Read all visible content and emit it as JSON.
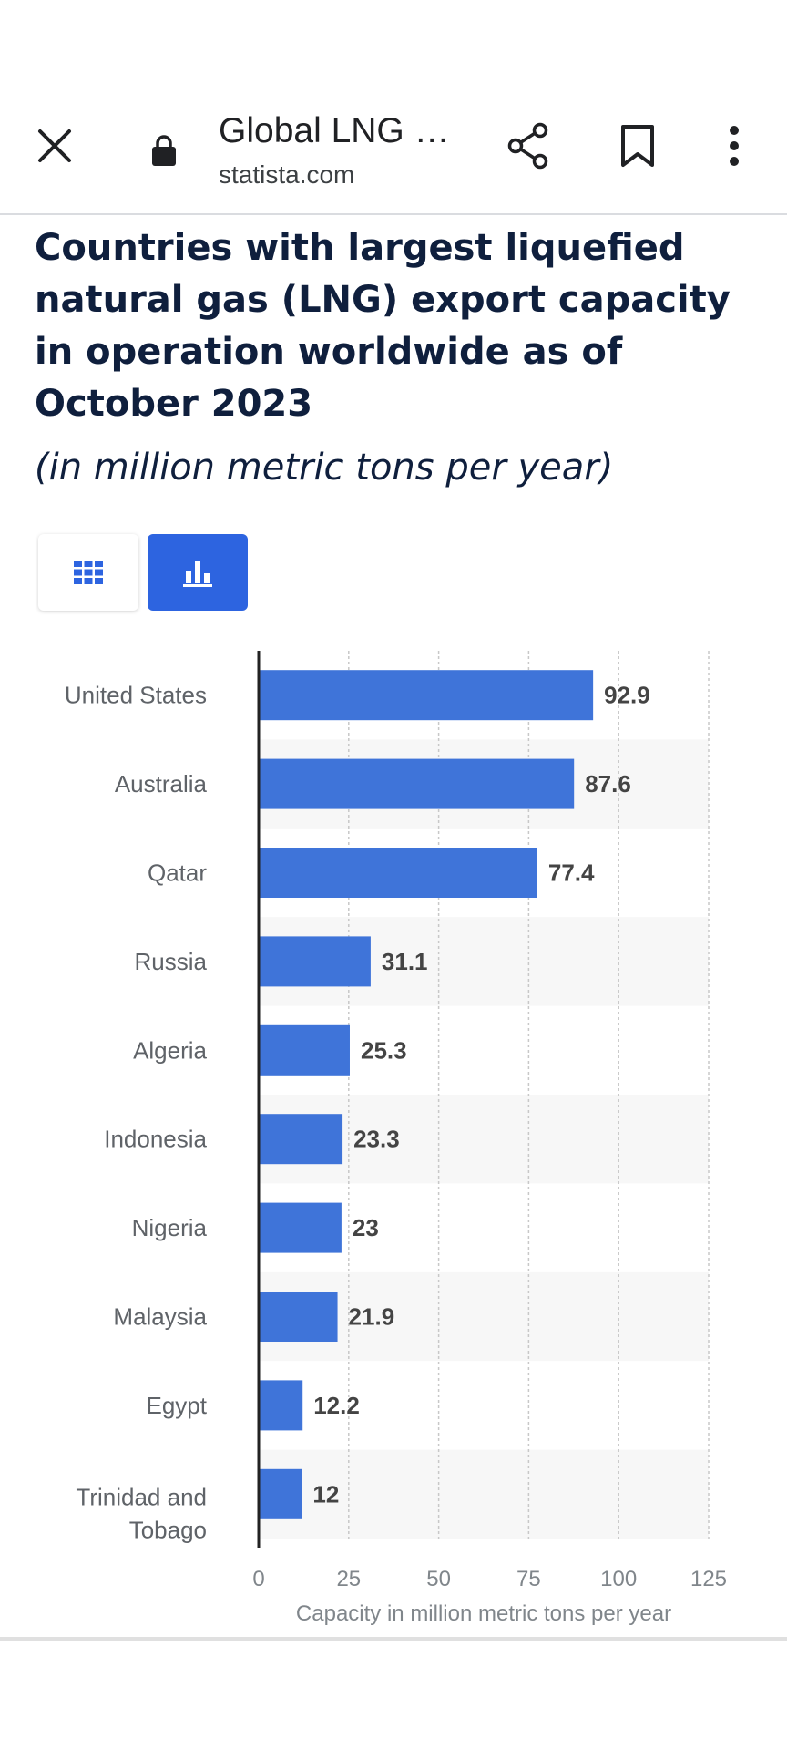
{
  "browser": {
    "title": "Global LNG e…",
    "domain": "statista.com",
    "icons": [
      "close-icon",
      "lock-icon",
      "share-icon",
      "bookmark-icon",
      "more-vert-icon"
    ]
  },
  "page": {
    "title": "Countries with largest liquefied natural gas (LNG) export capacity in operation worldwide as of October 2023",
    "subtitle": "(in million metric tons per year)"
  },
  "view_toggle": {
    "icons": [
      "table-icon",
      "bar-chart-icon"
    ],
    "active": "chart",
    "active_color": "#2d64e0"
  },
  "chart_data": {
    "type": "bar",
    "orientation": "horizontal",
    "categories": [
      "United States",
      "Australia",
      "Qatar",
      "Russia",
      "Algeria",
      "Indonesia",
      "Nigeria",
      "Malaysia",
      "Egypt",
      "Trinidad and Tobago"
    ],
    "values": [
      92.9,
      87.6,
      77.4,
      31.1,
      25.3,
      23.3,
      23,
      21.9,
      12.2,
      12
    ],
    "value_labels": [
      "92.9",
      "87.6",
      "77.4",
      "31.1",
      "25.3",
      "23.3",
      "23",
      "21.9",
      "12.2",
      "12"
    ],
    "xlabel": "Capacity in million metric tons per year",
    "xlim": [
      0,
      125
    ],
    "xticks": [
      0,
      25,
      50,
      75,
      100,
      125
    ],
    "bar_color": "#3f74d9",
    "grid": true
  }
}
